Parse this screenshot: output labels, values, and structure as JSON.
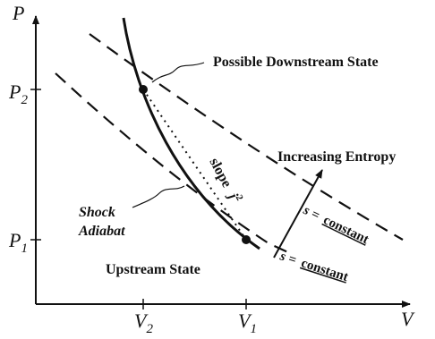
{
  "axes": {
    "y_label": "P",
    "x_label": "V",
    "y_ticks": [
      {
        "main": "P",
        "sub": "2"
      },
      {
        "main": "P",
        "sub": "1"
      }
    ],
    "x_ticks": [
      {
        "main": "V",
        "sub": "2"
      },
      {
        "main": "V",
        "sub": "1"
      }
    ]
  },
  "labels": {
    "downstream": "Possible Downstream State",
    "increasing_entropy": "Increasing Entropy",
    "shock_line1": "Shock",
    "shock_line2": "Adiabat",
    "upstream": "Upstream State",
    "slope_word": "slope",
    "slope_sym": "j",
    "slope_exp": "2",
    "s_const_upper_lhs": "s =",
    "s_const_upper_rhs": "constant",
    "s_const_lower_lhs": "s =",
    "s_const_lower_rhs": "constant"
  },
  "colors": {
    "ink": "#111111",
    "background": "#ffffff"
  }
}
